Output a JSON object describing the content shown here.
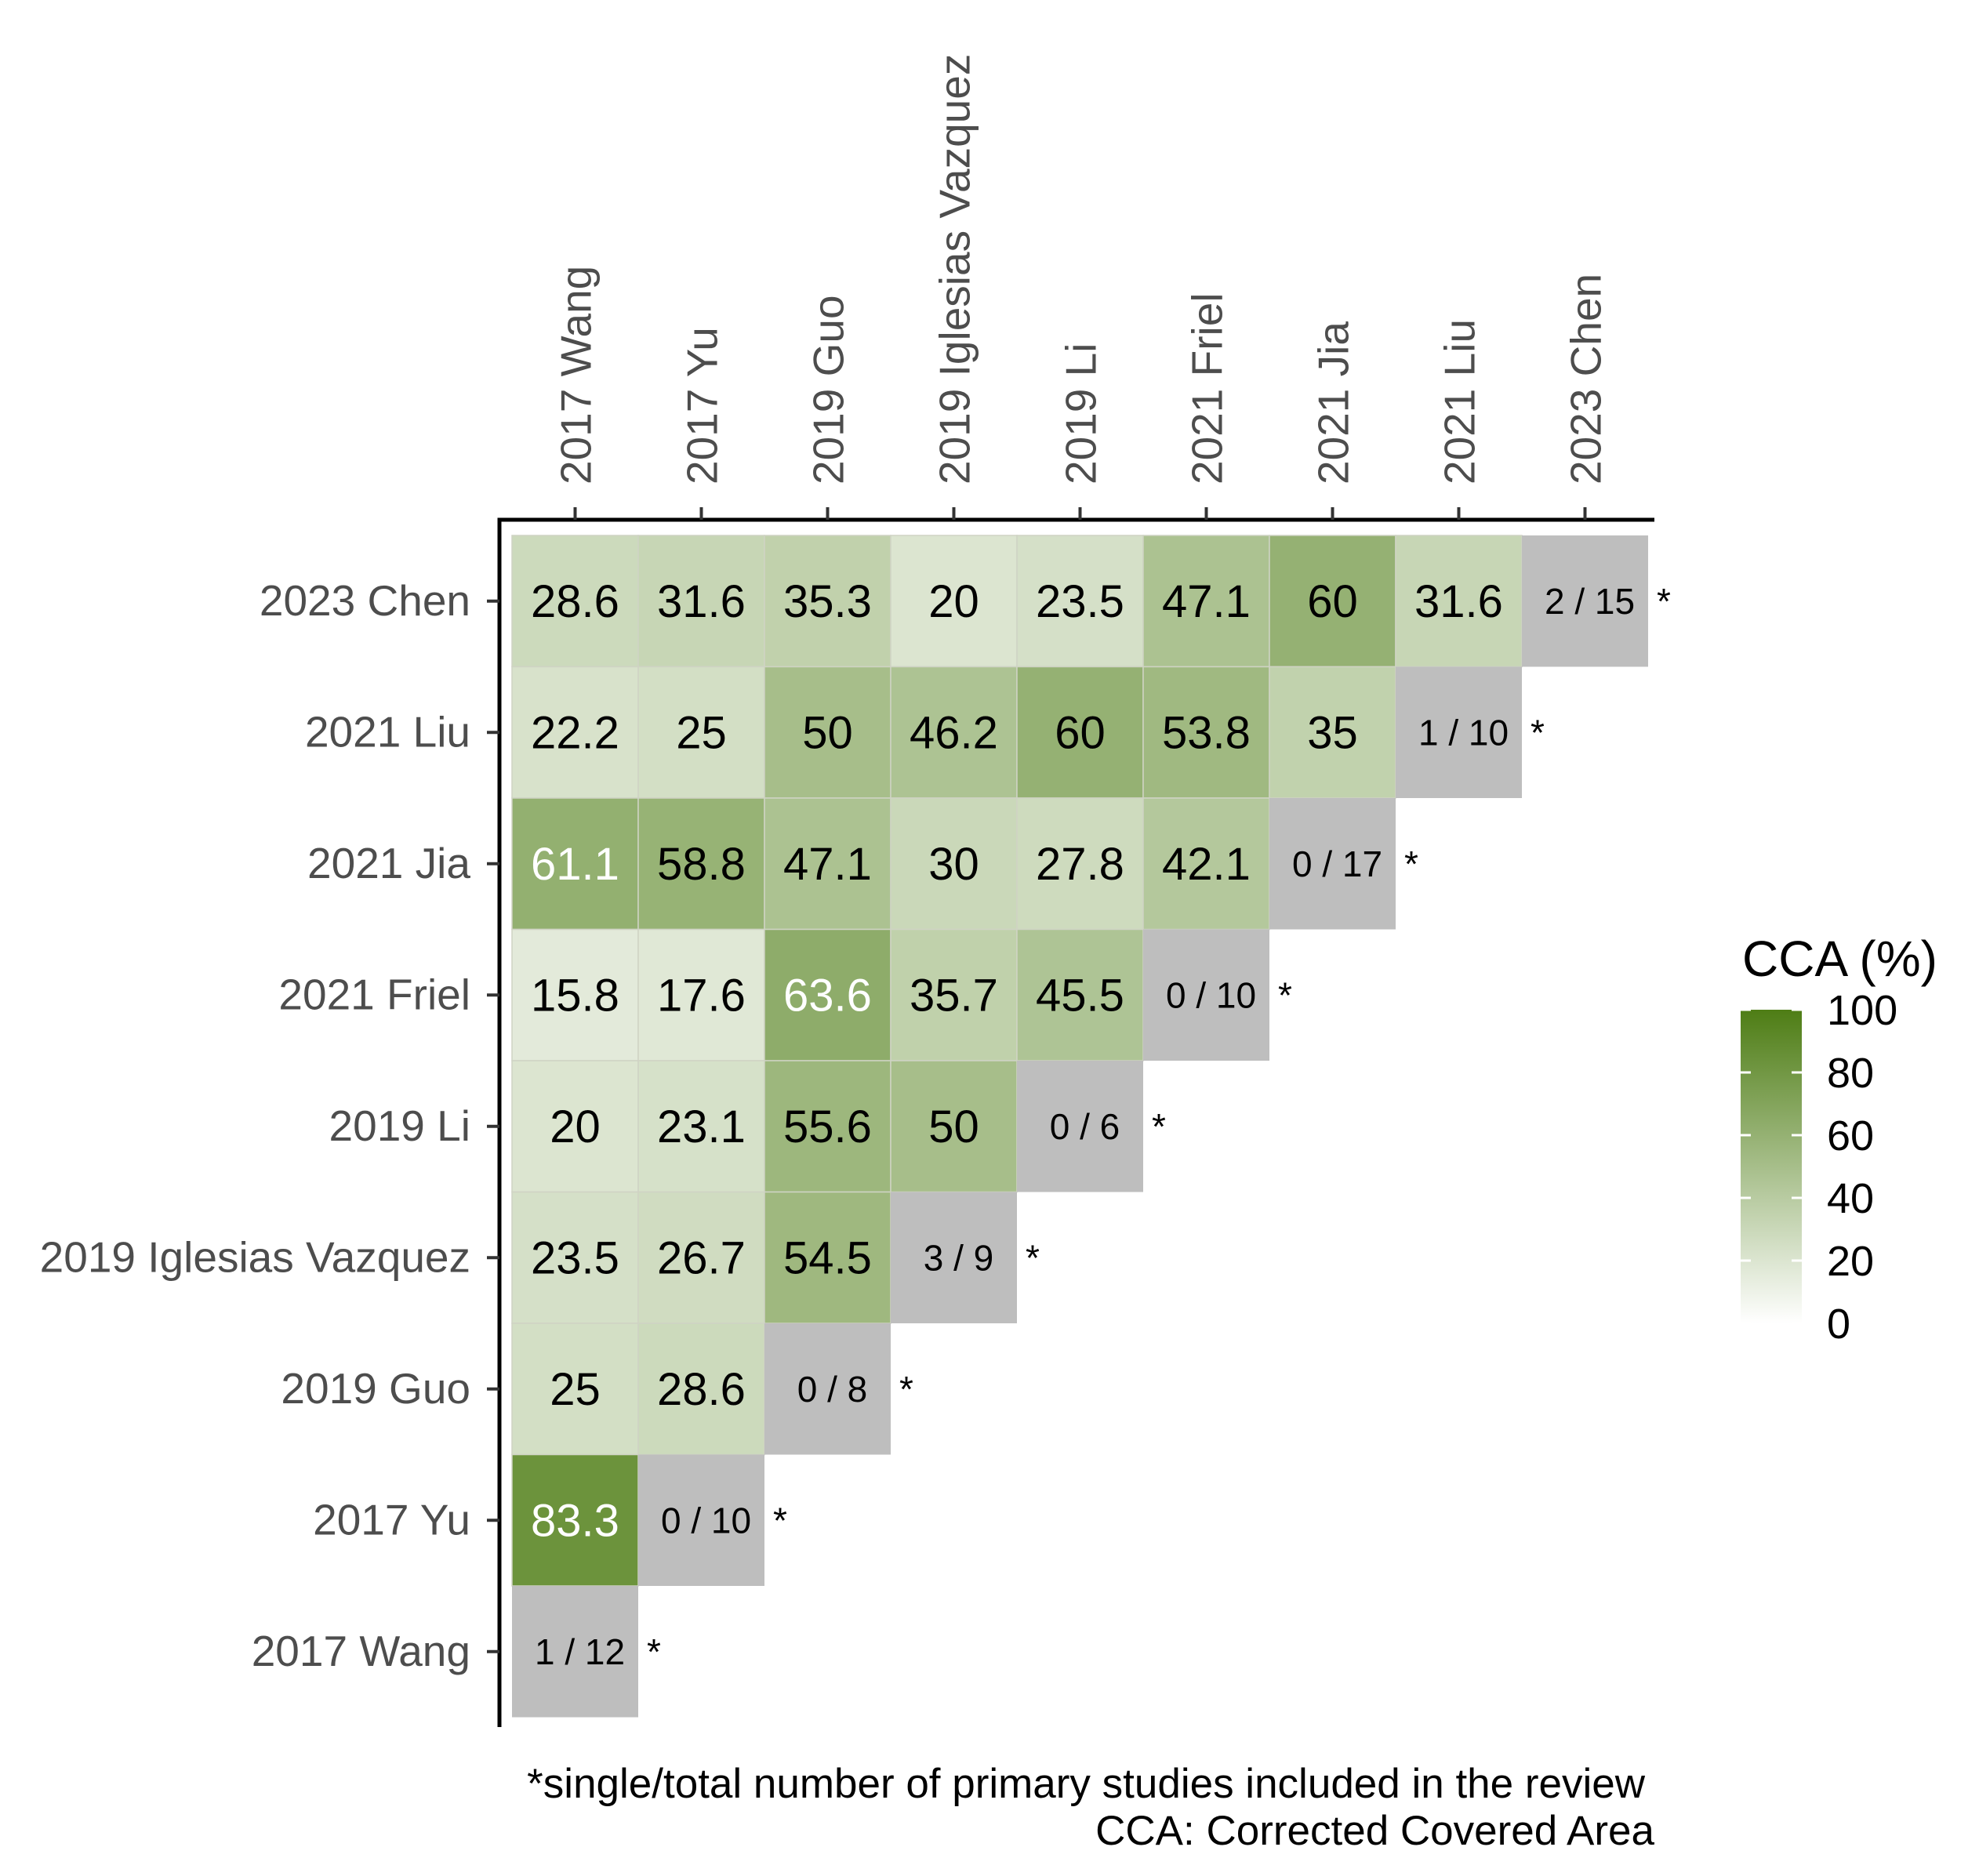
{
  "chart_data": {
    "type": "heatmap",
    "title": "",
    "xlabel": "",
    "ylabel": "",
    "columns": [
      "2017 Wang",
      "2017 Yu",
      "2019 Guo",
      "2019 Iglesias Vazquez",
      "2019 Li",
      "2021 Friel",
      "2021 Jia",
      "2021 Liu",
      "2023 Chen"
    ],
    "rows": [
      "2023 Chen",
      "2021 Liu",
      "2021 Jia",
      "2021 Friel",
      "2019 Li",
      "2019 Iglesias Vazquez",
      "2019 Guo",
      "2017 Yu",
      "2017 Wang"
    ],
    "values": [
      [
        28.6,
        31.6,
        35.3,
        20,
        23.5,
        47.1,
        60,
        31.6
      ],
      [
        22.2,
        25,
        50,
        46.2,
        60,
        53.8,
        35
      ],
      [
        61.1,
        58.8,
        47.1,
        30,
        27.8,
        42.1
      ],
      [
        15.8,
        17.6,
        63.6,
        35.7,
        45.5
      ],
      [
        20,
        23.1,
        55.6,
        50
      ],
      [
        23.5,
        26.7,
        54.5
      ],
      [
        25,
        28.6
      ],
      [
        83.3
      ],
      []
    ],
    "value_labels": [
      [
        "28.6",
        "31.6",
        "35.3",
        "20",
        "23.5",
        "47.1",
        "60",
        "31.6"
      ],
      [
        "22.2",
        "25",
        "50",
        "46.2",
        "60",
        "53.8",
        "35"
      ],
      [
        "61.1",
        "58.8",
        "47.1",
        "30",
        "27.8",
        "42.1"
      ],
      [
        "15.8",
        "17.6",
        "63.6",
        "35.7",
        "45.5"
      ],
      [
        "20",
        "23.1",
        "55.6",
        "50"
      ],
      [
        "23.5",
        "26.7",
        "54.5"
      ],
      [
        "25",
        "28.6"
      ],
      [
        "83.3"
      ],
      []
    ],
    "diagonal_labels": [
      "2 / 15",
      "1 / 10",
      "0 / 17",
      "0 / 10",
      "0 / 6",
      "3 / 9",
      "0 / 8",
      "0 / 10",
      "1 / 12"
    ],
    "diagonal_marker": "*",
    "legend": {
      "title": "CCA (%)",
      "ticks": [
        "100",
        "80",
        "60",
        "40",
        "20",
        "0"
      ],
      "tick_values": [
        100,
        80,
        60,
        40,
        20,
        0
      ],
      "range": [
        0,
        100
      ],
      "position": "right"
    },
    "colors": {
      "low": "#ffffff",
      "high": "#4e7d15",
      "diagonal": "#bebebe",
      "grid_line": "#cfd3c4",
      "dark_text": "#000000",
      "light_text": "#ffffff"
    },
    "footnotes": [
      "*single/total number of primary studies included in the review",
      "CCA: Corrected Covered Area"
    ]
  }
}
